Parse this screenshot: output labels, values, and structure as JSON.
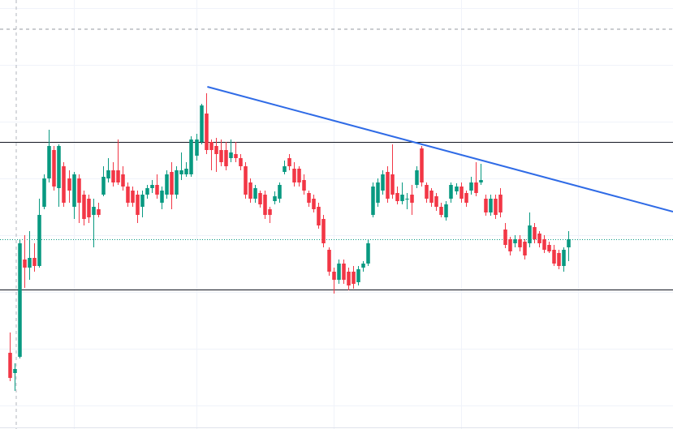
{
  "chart_data": {
    "type": "candlestick",
    "up_color": "#089981",
    "down_color": "#f23645",
    "xlim": [
      -2,
      135.3
    ],
    "ylim": [
      0,
      529
    ],
    "xticks": [
      13,
      38,
      66,
      92,
      116
    ],
    "yticks": [
      29,
      99,
      169,
      239,
      309,
      379,
      449,
      519
    ],
    "grid": true,
    "open": [
      94,
      69,
      89,
      209,
      199,
      211,
      201,
      274,
      309,
      344,
      297,
      324,
      309,
      274,
      309,
      289,
      284,
      264,
      271,
      289,
      309,
      319,
      319,
      314,
      299,
      294,
      289,
      274,
      289,
      297,
      301,
      279,
      289,
      317,
      289,
      314,
      314,
      314,
      337,
      354,
      389,
      354,
      349,
      344,
      344,
      334,
      339,
      334,
      324,
      304,
      284,
      291,
      289,
      271,
      281,
      284,
      317,
      334,
      321,
      321,
      307,
      291,
      284,
      274,
      259,
      221,
      194,
      184,
      204,
      194,
      194,
      181,
      199,
      204,
      264,
      279,
      294,
      317,
      314,
      291,
      281,
      283,
      289,
      301,
      346,
      301,
      294,
      287,
      274,
      261,
      284,
      293,
      299,
      291,
      294,
      304,
      304,
      284,
      267,
      284,
      289,
      246,
      234,
      229,
      234,
      231,
      229,
      249,
      241,
      234,
      227,
      221,
      217,
      201,
      224
    ],
    "high": [
      119,
      81,
      234,
      239,
      244,
      229,
      284,
      314,
      369,
      349,
      351,
      329,
      319,
      317,
      314,
      294,
      289,
      284,
      279,
      324,
      334,
      329,
      357,
      324,
      304,
      299,
      294,
      294,
      301,
      307,
      314,
      299,
      319,
      329,
      324,
      341,
      329,
      361,
      364,
      401,
      414,
      357,
      359,
      357,
      354,
      357,
      354,
      339,
      329,
      309,
      301,
      294,
      294,
      274,
      293,
      304,
      331,
      339,
      329,
      324,
      314,
      294,
      289,
      279,
      264,
      224,
      199,
      209,
      209,
      199,
      201,
      201,
      207,
      233,
      304,
      309,
      319,
      324,
      351,
      299,
      304,
      291,
      301,
      324,
      349,
      304,
      297,
      291,
      279,
      281,
      304,
      303,
      304,
      294,
      311,
      329,
      327,
      289,
      289,
      289,
      297,
      254,
      237,
      239,
      239,
      234,
      267,
      254,
      244,
      239,
      231,
      227,
      221,
      224,
      244
    ],
    "low": [
      59,
      47,
      87,
      174,
      184,
      194,
      199,
      271,
      304,
      294,
      274,
      274,
      279,
      259,
      254,
      251,
      254,
      224,
      261,
      287,
      304,
      299,
      301,
      294,
      274,
      274,
      254,
      261,
      284,
      291,
      284,
      271,
      284,
      271,
      284,
      307,
      311,
      311,
      331,
      351,
      339,
      319,
      317,
      324,
      319,
      329,
      329,
      319,
      284,
      279,
      279,
      273,
      259,
      254,
      277,
      279,
      314,
      319,
      299,
      299,
      289,
      274,
      267,
      247,
      224,
      189,
      167,
      179,
      179,
      171,
      173,
      177,
      194,
      201,
      261,
      274,
      289,
      279,
      284,
      277,
      277,
      271,
      264,
      297,
      299,
      279,
      274,
      269,
      261,
      257,
      279,
      289,
      279,
      274,
      289,
      287,
      301,
      263,
      263,
      259,
      261,
      223,
      214,
      224,
      219,
      209,
      224,
      229,
      224,
      217,
      217,
      201,
      197,
      194,
      207
    ],
    "close": [
      63,
      74,
      229,
      199,
      211,
      201,
      264,
      309,
      349,
      299,
      349,
      279,
      294,
      314,
      279,
      259,
      261,
      274,
      264,
      311,
      319,
      304,
      304,
      299,
      279,
      279,
      264,
      289,
      297,
      301,
      289,
      294,
      314,
      289,
      319,
      319,
      321,
      357,
      357,
      399,
      344,
      344,
      339,
      329,
      324,
      341,
      334,
      324,
      289,
      284,
      297,
      277,
      264,
      264,
      287,
      301,
      324,
      324,
      304,
      304,
      294,
      279,
      271,
      251,
      229,
      194,
      184,
      204,
      184,
      177,
      179,
      197,
      204,
      229,
      299,
      304,
      314,
      284,
      289,
      281,
      289,
      284,
      279,
      319,
      304,
      284,
      279,
      274,
      264,
      277,
      301,
      299,
      284,
      279,
      304,
      291,
      307,
      267,
      284,
      264,
      267,
      227,
      219,
      234,
      224,
      214,
      251,
      234,
      229,
      221,
      219,
      204,
      201,
      221,
      234
    ],
    "hlines": [
      354,
      172
    ],
    "hline_color": "#131722",
    "last_price_color": "#089981",
    "trendline": {
      "x": [
        40.3,
        135.3
      ],
      "y": [
        422,
        268
      ],
      "color": "#2f6be6"
    }
  }
}
